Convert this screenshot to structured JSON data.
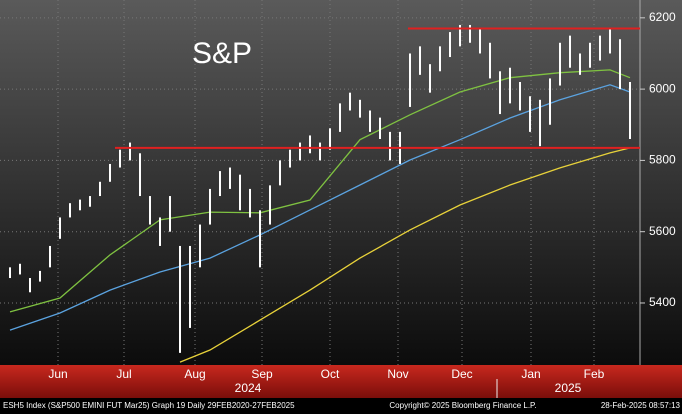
{
  "chart_data": {
    "type": "hilo",
    "title": "S&P",
    "xlim": [
      -1,
      63
    ],
    "ylim": [
      5226,
      6250
    ],
    "yticks": [
      5400,
      5600,
      5800,
      6000,
      6200
    ],
    "xticks": [
      {
        "value": 4.8,
        "label": "Jun"
      },
      {
        "value": 11.4,
        "label": "Jul"
      },
      {
        "value": 18.5,
        "label": "Aug"
      },
      {
        "value": 25.2,
        "label": "Sep"
      },
      {
        "value": 32,
        "label": "Oct"
      },
      {
        "value": 38.8,
        "label": "Nov"
      },
      {
        "value": 45.2,
        "label": "Dec"
      },
      {
        "value": 52.1,
        "label": "Jan"
      },
      {
        "value": 58.4,
        "label": "Feb"
      }
    ],
    "year_ticks": [
      {
        "value": 23.8,
        "label": "2024"
      },
      {
        "value": 55.8,
        "label": "2025"
      }
    ],
    "year_divider": 48.7,
    "grid": true,
    "price": {
      "color": "#ffffff",
      "high": [
        5500,
        5510,
        5470,
        5490,
        5560,
        5640,
        5680,
        5690,
        5700,
        5740,
        5790,
        5830,
        5850,
        5820,
        5700,
        5640,
        5700,
        5560,
        5560,
        5620,
        5720,
        5770,
        5780,
        5760,
        5720,
        5660,
        5730,
        5800,
        5830,
        5850,
        5870,
        5850,
        5890,
        5960,
        5990,
        5970,
        5940,
        5920,
        5880,
        5880,
        6100,
        6120,
        6070,
        6120,
        6160,
        6180,
        6180,
        6170,
        6130,
        6050,
        6060,
        6020,
        5980,
        5970,
        6030,
        6130,
        6150,
        6100,
        6130,
        6150,
        6170,
        6140,
        6020
      ],
      "low": [
        5470,
        5480,
        5430,
        5460,
        5500,
        5580,
        5640,
        5660,
        5670,
        5700,
        5740,
        5780,
        5800,
        5700,
        5620,
        5560,
        5600,
        5260,
        5330,
        5500,
        5620,
        5700,
        5720,
        5660,
        5640,
        5500,
        5620,
        5730,
        5780,
        5800,
        5820,
        5800,
        5830,
        5880,
        5940,
        5920,
        5880,
        5860,
        5800,
        5790,
        5950,
        6040,
        5990,
        6050,
        6090,
        6120,
        6130,
        6100,
        6030,
        5930,
        5960,
        5940,
        5880,
        5840,
        5900,
        6010,
        6060,
        6040,
        6060,
        6080,
        6100,
        6000,
        5860
      ]
    },
    "series": [
      {
        "color": "#7fc241",
        "x": [
          0,
          5,
          10,
          15,
          20,
          25,
          30,
          35,
          40,
          45,
          50,
          55,
          60,
          62
        ],
        "values": [
          5375,
          5414,
          5535,
          5633,
          5655,
          5653,
          5689,
          5858,
          5928,
          5992,
          6032,
          6046,
          6054,
          6032
        ]
      },
      {
        "color": "#5ba3e0",
        "x": [
          0,
          5,
          10,
          15,
          20,
          25,
          30,
          35,
          40,
          45,
          50,
          55,
          60,
          62
        ],
        "values": [
          5324,
          5372,
          5436,
          5487,
          5526,
          5591,
          5661,
          5731,
          5801,
          5858,
          5919,
          5970,
          6012,
          5992
        ]
      },
      {
        "color": "#e8d23a",
        "x": [
          17,
          20,
          25,
          30,
          35,
          40,
          45,
          50,
          55,
          60,
          62
        ],
        "values": [
          5234,
          5268,
          5352,
          5436,
          5526,
          5605,
          5675,
          5731,
          5779,
          5821,
          5835
        ]
      }
    ],
    "hlines": [
      {
        "value": 6170,
        "from": 39.8,
        "color": "#e02020"
      },
      {
        "value": 5835,
        "from": 10.5,
        "color": "#e02020"
      }
    ],
    "footer": {
      "left": "ESH5 Index (S&P500 EMINI FUT  Mar25) Graph 19  Daily 29FEB2020-27FEB2025",
      "center": "Copyright© 2025 Bloomberg Finance L.P.",
      "right": "28-Feb-2025 08:57:13"
    }
  }
}
